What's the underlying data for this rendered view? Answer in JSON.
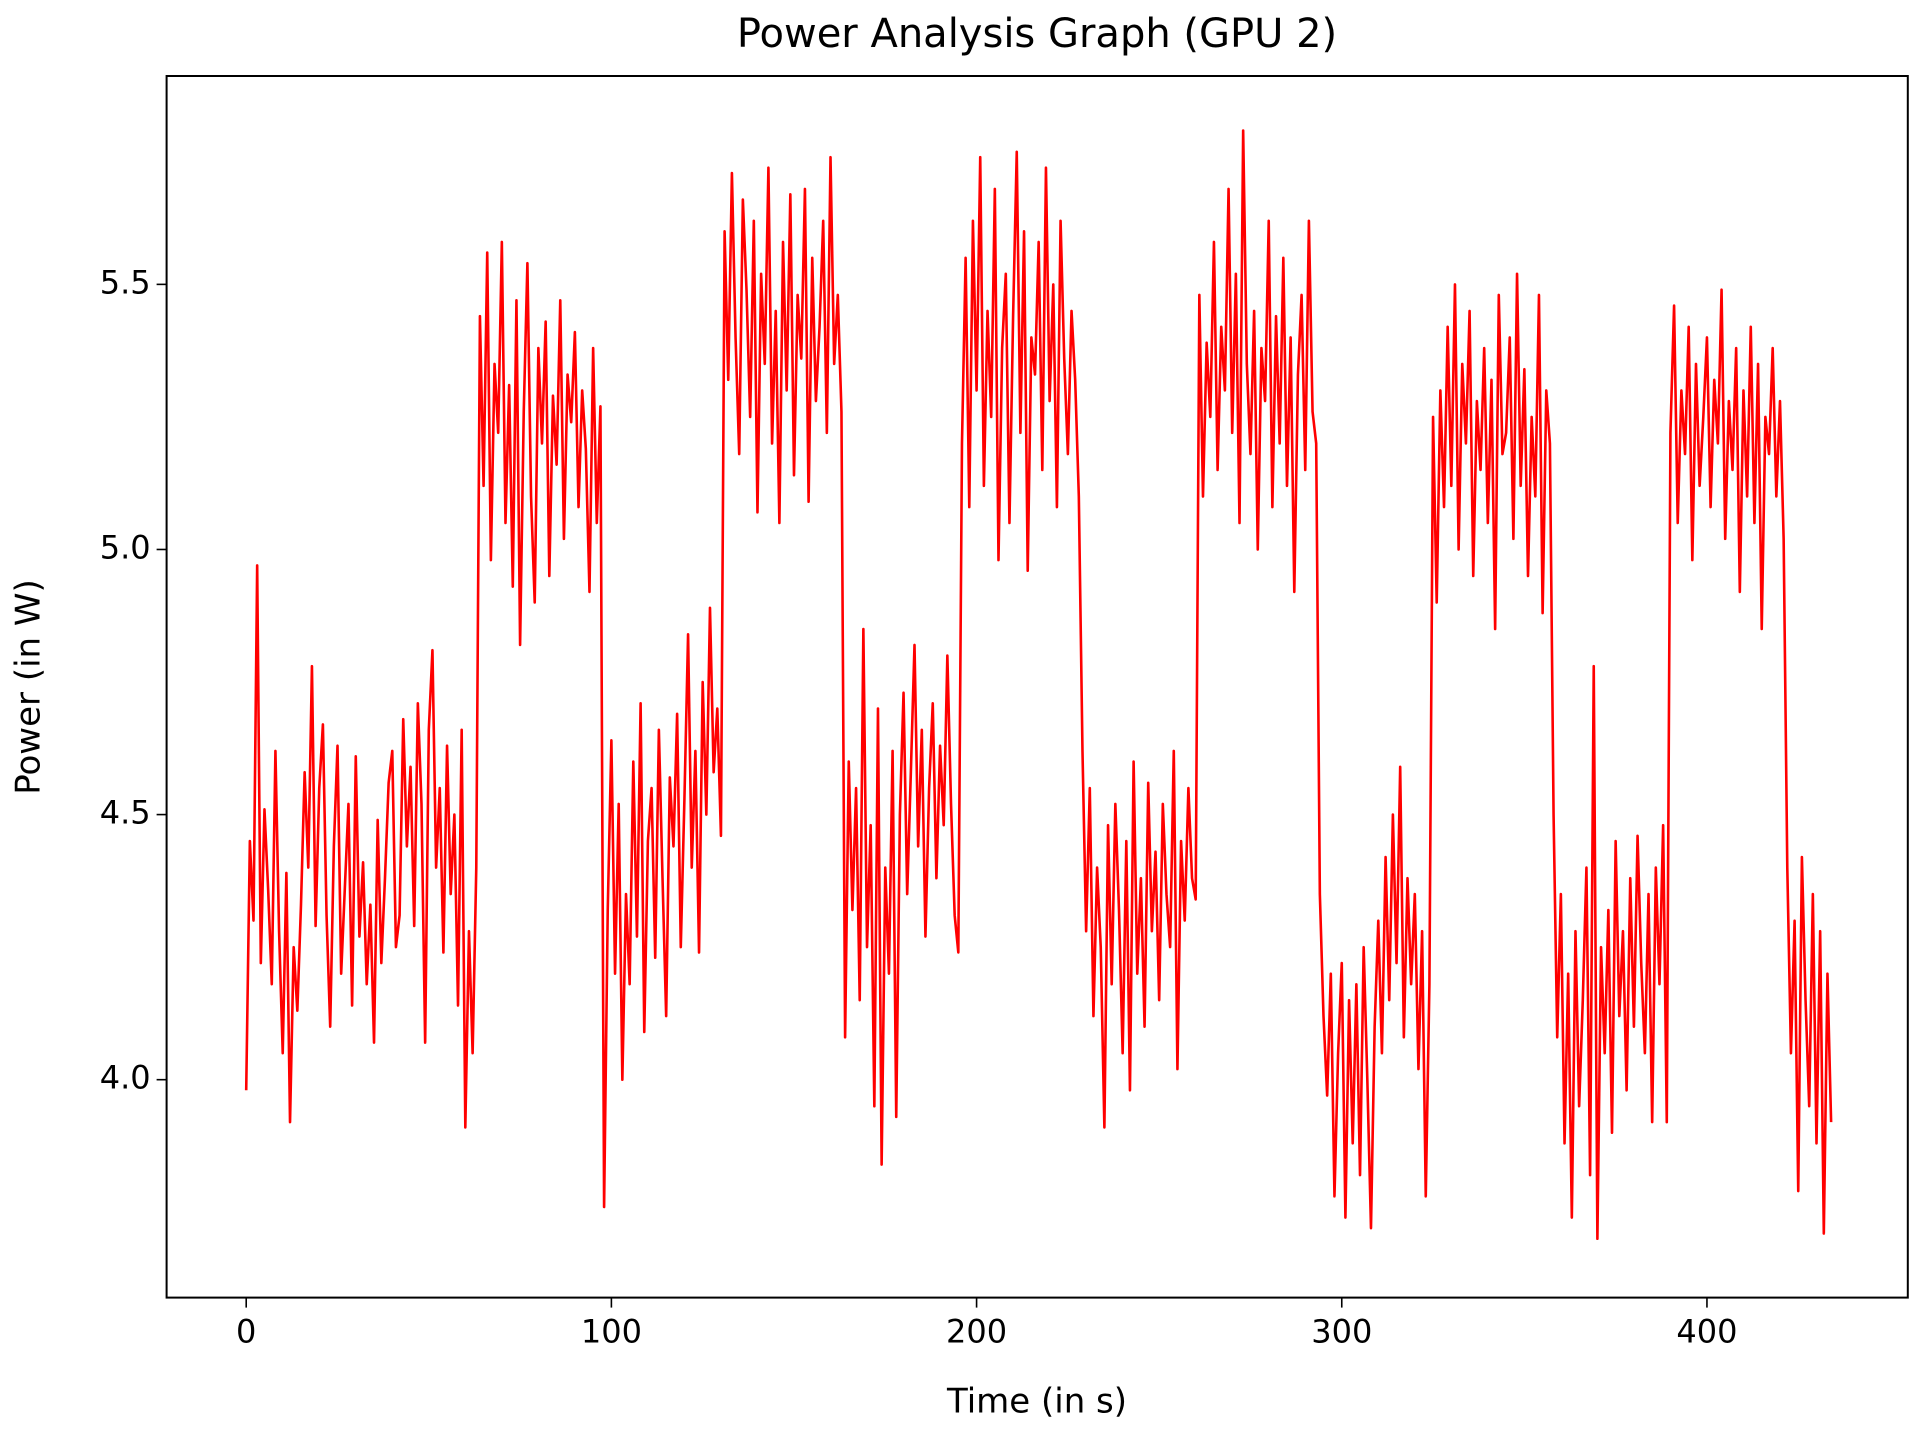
{
  "chart_data": {
    "type": "line",
    "title": "Power Analysis Graph (GPU 2)",
    "x_label": "Time (in s)",
    "y_label": "Power (in W)",
    "xlim": [
      -21.8,
      455
    ],
    "ylim": [
      3.589,
      5.893
    ],
    "xticks": [
      0,
      100,
      200,
      300,
      400
    ],
    "yticks": [
      {
        "value": 4,
        "label": "4.0"
      },
      4.5,
      {
        "value": 5,
        "label": "5.0"
      },
      5.5
    ],
    "x": [
      0,
      1,
      2,
      3,
      4,
      5,
      6,
      7,
      8,
      9,
      10,
      11,
      12,
      13,
      14,
      15,
      16,
      17,
      18,
      19,
      20,
      21,
      22,
      23,
      24,
      25,
      26,
      27,
      28,
      29,
      30,
      31,
      32,
      33,
      34,
      35,
      36,
      37,
      38,
      39,
      40,
      41,
      42,
      43,
      44,
      45,
      46,
      47,
      48,
      49,
      50,
      51,
      52,
      53,
      54,
      55,
      56,
      57,
      58,
      59,
      60,
      61,
      62,
      63,
      64,
      65,
      66,
      67,
      68,
      69,
      70,
      71,
      72,
      73,
      74,
      75,
      76,
      77,
      78,
      79,
      80,
      81,
      82,
      83,
      84,
      85,
      86,
      87,
      88,
      89,
      90,
      91,
      92,
      93,
      94,
      95,
      96,
      97,
      98,
      99,
      100,
      101,
      102,
      103,
      104,
      105,
      106,
      107,
      108,
      109,
      110,
      111,
      112,
      113,
      114,
      115,
      116,
      117,
      118,
      119,
      120,
      121,
      122,
      123,
      124,
      125,
      126,
      127,
      128,
      129,
      130,
      131,
      132,
      133,
      134,
      135,
      136,
      137,
      138,
      139,
      140,
      141,
      142,
      143,
      144,
      145,
      146,
      147,
      148,
      149,
      150,
      151,
      152,
      153,
      154,
      155,
      156,
      157,
      158,
      159,
      160,
      161,
      162,
      163,
      164,
      165,
      166,
      167,
      168,
      169,
      170,
      171,
      172,
      173,
      174,
      175,
      176,
      177,
      178,
      179,
      180,
      181,
      182,
      183,
      184,
      185,
      186,
      187,
      188,
      189,
      190,
      191,
      192,
      193,
      194,
      195,
      196,
      197,
      198,
      199,
      200,
      201,
      202,
      203,
      204,
      205,
      206,
      207,
      208,
      209,
      210,
      211,
      212,
      213,
      214,
      215,
      216,
      217,
      218,
      219,
      220,
      221,
      222,
      223,
      224,
      225,
      226,
      227,
      228,
      229,
      230,
      231,
      232,
      233,
      234,
      235,
      236,
      237,
      238,
      239,
      240,
      241,
      242,
      243,
      244,
      245,
      246,
      247,
      248,
      249,
      250,
      251,
      252,
      253,
      254,
      255,
      256,
      257,
      258,
      259,
      260,
      261,
      262,
      263,
      264,
      265,
      266,
      267,
      268,
      269,
      270,
      271,
      272,
      273,
      274,
      275,
      276,
      277,
      278,
      279,
      280,
      281,
      282,
      283,
      284,
      285,
      286,
      287,
      288,
      289,
      290,
      291,
      292,
      293,
      294,
      295,
      296,
      297,
      298,
      299,
      300,
      301,
      302,
      303,
      304,
      305,
      306,
      307,
      308,
      309,
      310,
      311,
      312,
      313,
      314,
      315,
      316,
      317,
      318,
      319,
      320,
      321,
      322,
      323,
      324,
      325,
      326,
      327,
      328,
      329,
      330,
      331,
      332,
      333,
      334,
      335,
      336,
      337,
      338,
      339,
      340,
      341,
      342,
      343,
      344,
      345,
      346,
      347,
      348,
      349,
      350,
      351,
      352,
      353,
      354,
      355,
      356,
      357,
      358,
      359,
      360,
      361,
      362,
      363,
      364,
      365,
      366,
      367,
      368,
      369,
      370,
      371,
      372,
      373,
      374,
      375,
      376,
      377,
      378,
      379,
      380,
      381,
      382,
      383,
      384,
      385,
      386,
      387,
      388,
      389,
      390,
      391,
      392,
      393,
      394,
      395,
      396,
      397,
      398,
      399,
      400,
      401,
      402,
      403,
      404,
      405,
      406,
      407,
      408,
      409,
      410,
      411,
      412,
      413,
      414,
      415,
      416,
      417,
      418,
      419,
      420,
      421,
      422,
      423,
      424,
      425,
      426,
      427,
      428,
      429,
      430,
      431,
      432,
      433,
      434
    ],
    "series": [
      {
        "color": "#ff0000",
        "values": [
          3.98,
          4.45,
          4.3,
          4.97,
          4.22,
          4.51,
          4.36,
          4.18,
          4.62,
          4.28,
          4.05,
          4.39,
          3.92,
          4.25,
          4.13,
          4.33,
          4.58,
          4.4,
          4.78,
          4.29,
          4.55,
          4.67,
          4.31,
          4.1,
          4.44,
          4.63,
          4.2,
          4.36,
          4.52,
          4.14,
          4.61,
          4.27,
          4.41,
          4.18,
          4.33,
          4.07,
          4.49,
          4.22,
          4.38,
          4.56,
          4.62,
          4.25,
          4.31,
          4.68,
          4.44,
          4.59,
          4.29,
          4.71,
          4.52,
          4.07,
          4.66,
          4.81,
          4.4,
          4.55,
          4.24,
          4.63,
          4.35,
          4.5,
          4.14,
          4.66,
          3.91,
          4.28,
          4.05,
          4.4,
          5.44,
          5.12,
          5.56,
          4.98,
          5.35,
          5.22,
          5.58,
          5.05,
          5.31,
          4.93,
          5.47,
          4.82,
          5.26,
          5.54,
          5.1,
          4.9,
          5.38,
          5.2,
          5.43,
          4.95,
          5.29,
          5.16,
          5.47,
          5.02,
          5.33,
          5.24,
          5.41,
          5.08,
          5.3,
          5.19,
          4.92,
          5.38,
          5.05,
          5.27,
          3.76,
          4.32,
          4.64,
          4.2,
          4.52,
          4.0,
          4.35,
          4.18,
          4.6,
          4.27,
          4.71,
          4.09,
          4.45,
          4.55,
          4.23,
          4.66,
          4.38,
          4.12,
          4.57,
          4.44,
          4.69,
          4.25,
          4.53,
          4.84,
          4.4,
          4.62,
          4.24,
          4.75,
          4.5,
          4.89,
          4.58,
          4.7,
          4.46,
          5.6,
          5.32,
          5.71,
          5.4,
          5.18,
          5.66,
          5.49,
          5.25,
          5.62,
          5.07,
          5.52,
          5.35,
          5.72,
          5.2,
          5.45,
          5.05,
          5.58,
          5.3,
          5.67,
          5.14,
          5.48,
          5.36,
          5.68,
          5.09,
          5.55,
          5.28,
          5.42,
          5.62,
          5.22,
          5.74,
          5.35,
          5.48,
          5.26,
          4.08,
          4.6,
          4.32,
          4.55,
          4.15,
          4.85,
          4.25,
          4.48,
          3.95,
          4.7,
          3.84,
          4.4,
          4.2,
          4.62,
          3.93,
          4.5,
          4.73,
          4.35,
          4.58,
          4.82,
          4.44,
          4.66,
          4.27,
          4.55,
          4.71,
          4.38,
          4.63,
          4.48,
          4.8,
          4.52,
          4.31,
          4.24,
          5.2,
          5.55,
          5.08,
          5.62,
          5.3,
          5.74,
          5.12,
          5.45,
          5.25,
          5.68,
          4.98,
          5.38,
          5.52,
          5.05,
          5.44,
          5.75,
          5.22,
          5.6,
          4.96,
          5.4,
          5.33,
          5.58,
          5.15,
          5.72,
          5.28,
          5.5,
          5.08,
          5.62,
          5.36,
          5.18,
          5.45,
          5.32,
          5.1,
          4.62,
          4.28,
          4.55,
          4.12,
          4.4,
          4.25,
          3.91,
          4.48,
          4.18,
          4.52,
          4.32,
          4.05,
          4.45,
          3.98,
          4.6,
          4.2,
          4.38,
          4.1,
          4.56,
          4.28,
          4.43,
          4.15,
          4.52,
          4.35,
          4.25,
          4.62,
          4.02,
          4.45,
          4.3,
          4.55,
          4.38,
          4.34,
          5.48,
          5.1,
          5.39,
          5.25,
          5.58,
          5.15,
          5.42,
          5.3,
          5.68,
          5.22,
          5.52,
          5.05,
          5.79,
          5.35,
          5.18,
          5.45,
          5.0,
          5.38,
          5.28,
          5.62,
          5.08,
          5.44,
          5.2,
          5.55,
          5.12,
          5.4,
          4.92,
          5.33,
          5.48,
          5.15,
          5.62,
          5.26,
          5.2,
          4.35,
          4.12,
          3.97,
          4.2,
          3.78,
          4.05,
          4.22,
          3.74,
          4.15,
          3.88,
          4.18,
          3.82,
          4.25,
          4.0,
          3.72,
          4.1,
          4.3,
          4.05,
          4.42,
          4.15,
          4.5,
          4.22,
          4.59,
          4.08,
          4.38,
          4.18,
          4.35,
          4.02,
          4.28,
          3.78,
          4.18,
          5.25,
          4.9,
          5.3,
          5.08,
          5.42,
          5.12,
          5.5,
          5.0,
          5.35,
          5.2,
          5.45,
          4.95,
          5.28,
          5.15,
          5.38,
          5.05,
          5.32,
          4.85,
          5.48,
          5.18,
          5.22,
          5.4,
          5.02,
          5.52,
          5.12,
          5.34,
          4.95,
          5.25,
          5.1,
          5.48,
          4.88,
          5.3,
          5.2,
          4.5,
          4.08,
          4.35,
          3.88,
          4.2,
          3.74,
          4.28,
          3.95,
          4.15,
          4.4,
          3.82,
          4.78,
          3.7,
          4.25,
          4.05,
          4.32,
          3.9,
          4.45,
          4.12,
          4.28,
          3.98,
          4.38,
          4.1,
          4.46,
          4.22,
          4.05,
          4.35,
          3.92,
          4.4,
          4.18,
          4.48,
          3.92,
          5.22,
          5.46,
          5.05,
          5.3,
          5.18,
          5.42,
          4.98,
          5.35,
          5.12,
          5.25,
          5.4,
          5.08,
          5.32,
          5.2,
          5.49,
          5.02,
          5.28,
          5.15,
          5.38,
          4.92,
          5.3,
          5.1,
          5.42,
          5.05,
          5.35,
          4.85,
          5.25,
          5.18,
          5.38,
          5.1,
          5.28,
          5.02,
          4.4,
          4.05,
          4.3,
          3.79,
          4.42,
          4.15,
          3.95,
          4.35,
          3.88,
          4.28,
          3.71,
          4.2,
          3.92
        ]
      }
    ]
  }
}
